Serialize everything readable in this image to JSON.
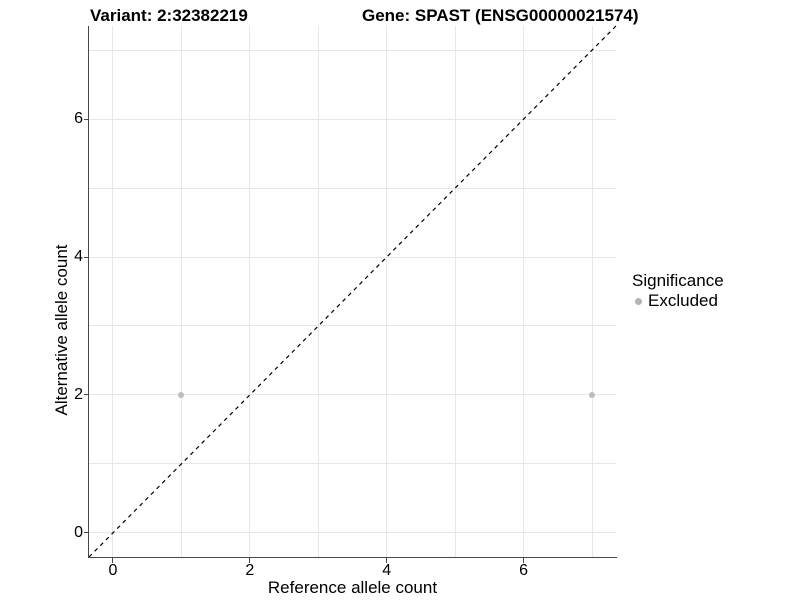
{
  "chart_data": {
    "type": "scatter",
    "title_left": "Variant: 2:32382219",
    "title_right": "Gene: SPAST (ENSG00000021574)",
    "xlabel": "Reference allele count",
    "ylabel": "Alternative allele count",
    "xlim": [
      -0.35,
      7.35
    ],
    "ylim": [
      -0.35,
      7.35
    ],
    "xticks": [
      0,
      2,
      4,
      6
    ],
    "yticks": [
      0,
      2,
      4,
      6
    ],
    "grid_x": [
      0,
      1,
      2,
      3,
      4,
      5,
      6,
      7
    ],
    "grid_y": [
      0,
      1,
      2,
      3,
      4,
      5,
      6,
      7
    ],
    "grid": "on",
    "points": [
      {
        "x": 1,
        "y": 2,
        "series": "Excluded"
      },
      {
        "x": 7,
        "y": 2,
        "series": "Excluded"
      }
    ],
    "identity_line": {
      "from": [
        -0.35,
        -0.35
      ],
      "to": [
        7.35,
        7.35
      ],
      "style": "dashed",
      "color": "#000000"
    },
    "legend": {
      "title": "Significance",
      "position": "right",
      "items": [
        {
          "label": "Excluded",
          "color": "#b3b3b3"
        }
      ]
    },
    "colors": {
      "point_excluded": "#bdbdbd",
      "gridline": "#e7e7e7",
      "axis_line": "#474747",
      "tick": "#474747",
      "text": "#000000",
      "background": "#ffffff"
    }
  }
}
